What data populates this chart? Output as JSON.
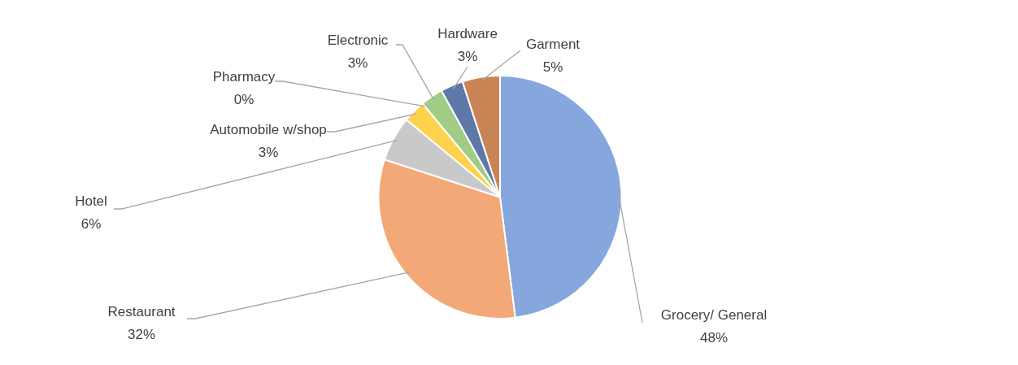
{
  "chart_data": {
    "type": "pie",
    "categories": [
      "Grocery/ General",
      "Restaurant",
      "Hotel",
      "Automobile w/shop",
      "Pharmacy",
      "Electronic",
      "Hardware",
      "Garment"
    ],
    "values": [
      48,
      32,
      6,
      3,
      0,
      3,
      3,
      5
    ],
    "value_labels": [
      "48%",
      "32%",
      "6%",
      "3%",
      "0%",
      "3%",
      "3%",
      "5%"
    ],
    "colors": [
      "#86a6de",
      "#f3a877",
      "#c9c9c9",
      "#ffd24d",
      "#8cc0e6",
      "#a0cc85",
      "#5e78a8",
      "#c98455"
    ],
    "data_labels": true,
    "legend": false
  }
}
